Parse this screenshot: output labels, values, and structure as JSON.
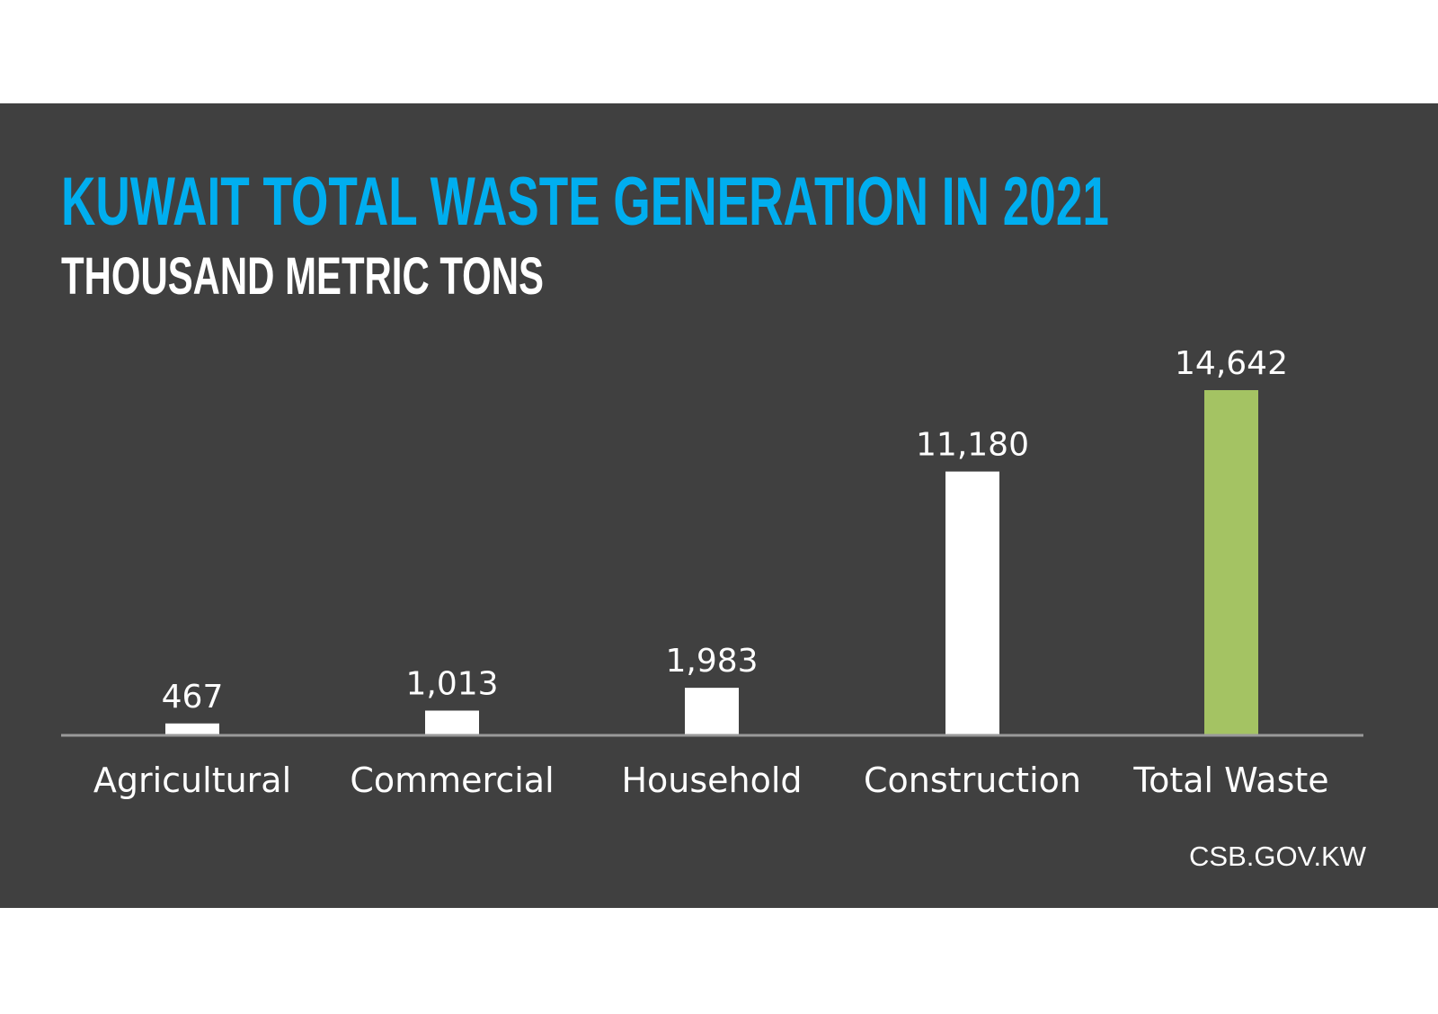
{
  "chart_data": {
    "type": "bar",
    "title": "KUWAIT TOTAL WASTE GENERATION IN 2021",
    "subtitle": "THOUSAND METRIC TONS",
    "categories": [
      "Agricultural",
      "Commercial",
      "Household",
      "Construction",
      "Total Waste"
    ],
    "values": [
      467,
      1013,
      1983,
      11180,
      14642
    ],
    "value_labels": [
      "467",
      "1,013",
      "1,983",
      "11,180",
      "14,642"
    ],
    "xlabel": "",
    "ylabel": "",
    "ylim": [
      0,
      14642
    ],
    "grid": false,
    "legend": "none",
    "source": "CSB.GOV.KW",
    "colors": {
      "background": "#404040",
      "title": "#00AEEF",
      "bars": [
        "#FFFFFF",
        "#FFFFFF",
        "#FFFFFF",
        "#FFFFFF",
        "#A4C363"
      ],
      "axis": "#9A9A9A"
    }
  }
}
